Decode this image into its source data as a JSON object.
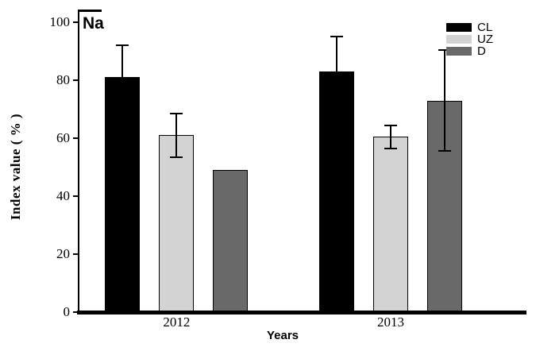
{
  "chart_data": {
    "type": "bar",
    "title": "Na",
    "xlabel": "Years",
    "ylabel": "Index value ( % )",
    "categories": [
      "2012",
      "2013"
    ],
    "series": [
      {
        "name": "CL",
        "color": "#000000",
        "values": [
          81,
          83
        ],
        "errors": [
          11,
          12
        ]
      },
      {
        "name": "UZ",
        "color": "#d3d3d3",
        "values": [
          61,
          60.5
        ],
        "errors": [
          7.5,
          4
        ]
      },
      {
        "name": "D",
        "color": "#696969",
        "values": [
          49,
          73
        ],
        "errors": [
          0,
          17.5
        ]
      }
    ],
    "ylim": [
      0,
      100
    ],
    "yticks": [
      0,
      20,
      40,
      60,
      80,
      100
    ],
    "grid": false,
    "legend_position": "top-right",
    "error_bars": true
  }
}
